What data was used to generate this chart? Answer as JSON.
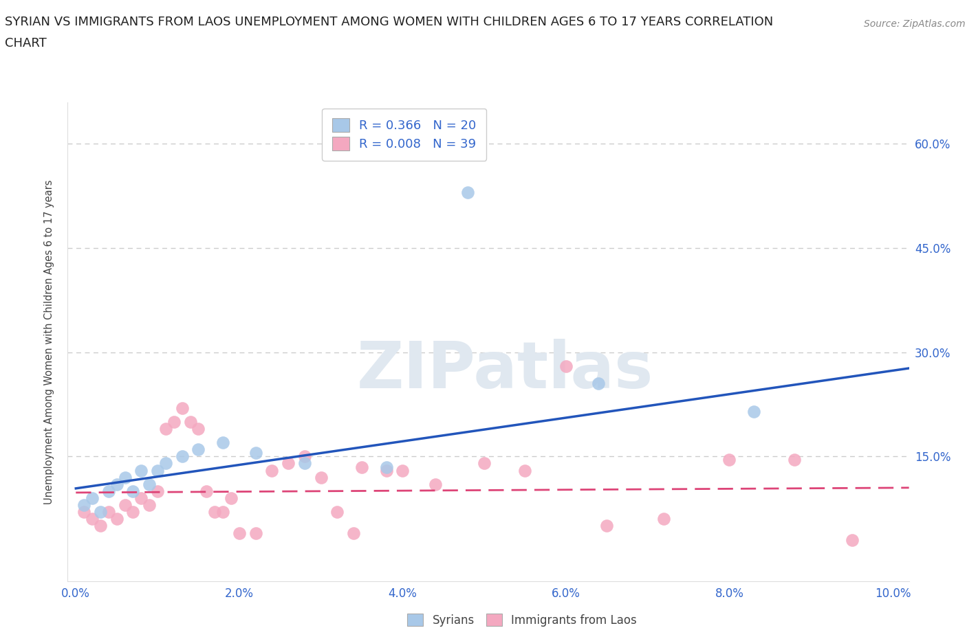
{
  "title_line1": "SYRIAN VS IMMIGRANTS FROM LAOS UNEMPLOYMENT AMONG WOMEN WITH CHILDREN AGES 6 TO 17 YEARS CORRELATION",
  "title_line2": "CHART",
  "source": "Source: ZipAtlas.com",
  "ylabel": "Unemployment Among Women with Children Ages 6 to 17 years",
  "xlim": [
    -0.001,
    0.102
  ],
  "ylim": [
    -0.03,
    0.66
  ],
  "yticks": [
    0.0,
    0.15,
    0.3,
    0.45,
    0.6
  ],
  "ytick_labels": [
    "",
    "15.0%",
    "30.0%",
    "45.0%",
    "60.0%"
  ],
  "xticks": [
    0.0,
    0.02,
    0.04,
    0.06,
    0.08,
    0.1
  ],
  "xtick_labels": [
    "0.0%",
    "2.0%",
    "4.0%",
    "6.0%",
    "8.0%",
    "10.0%"
  ],
  "syrian_R": "0.366",
  "syrian_N": "20",
  "laos_R": "0.008",
  "laos_N": "39",
  "syrian_color": "#a8c8e8",
  "laos_color": "#f4a8c0",
  "syrian_line_color": "#2255bb",
  "laos_line_color": "#dd4477",
  "grid_color": "#cccccc",
  "background_color": "#ffffff",
  "title_color": "#222222",
  "axis_label_color": "#444444",
  "tick_label_color": "#3366cc",
  "watermark_text": "ZIPatlas",
  "watermark_color": "#e0e8f0",
  "syrians_x": [
    0.001,
    0.002,
    0.003,
    0.004,
    0.005,
    0.006,
    0.007,
    0.008,
    0.009,
    0.01,
    0.011,
    0.013,
    0.015,
    0.018,
    0.022,
    0.028,
    0.038,
    0.048,
    0.064,
    0.083
  ],
  "syrians_y": [
    0.08,
    0.09,
    0.07,
    0.1,
    0.11,
    0.12,
    0.1,
    0.13,
    0.11,
    0.13,
    0.14,
    0.15,
    0.16,
    0.17,
    0.155,
    0.14,
    0.135,
    0.53,
    0.255,
    0.215
  ],
  "laos_x": [
    0.001,
    0.002,
    0.003,
    0.004,
    0.005,
    0.006,
    0.007,
    0.008,
    0.009,
    0.01,
    0.011,
    0.012,
    0.013,
    0.014,
    0.015,
    0.016,
    0.017,
    0.018,
    0.019,
    0.02,
    0.022,
    0.024,
    0.026,
    0.028,
    0.03,
    0.032,
    0.034,
    0.035,
    0.038,
    0.04,
    0.044,
    0.05,
    0.055,
    0.06,
    0.065,
    0.072,
    0.08,
    0.088,
    0.095
  ],
  "laos_y": [
    0.07,
    0.06,
    0.05,
    0.07,
    0.06,
    0.08,
    0.07,
    0.09,
    0.08,
    0.1,
    0.19,
    0.2,
    0.22,
    0.2,
    0.19,
    0.1,
    0.07,
    0.07,
    0.09,
    0.04,
    0.04,
    0.13,
    0.14,
    0.15,
    0.12,
    0.07,
    0.04,
    0.135,
    0.13,
    0.13,
    0.11,
    0.14,
    0.13,
    0.28,
    0.05,
    0.06,
    0.145,
    0.145,
    0.03
  ],
  "syrian_trendline": [
    0.104,
    0.277
  ],
  "laos_trendline": [
    0.098,
    0.105
  ],
  "trendline_x": [
    0.0,
    0.102
  ]
}
